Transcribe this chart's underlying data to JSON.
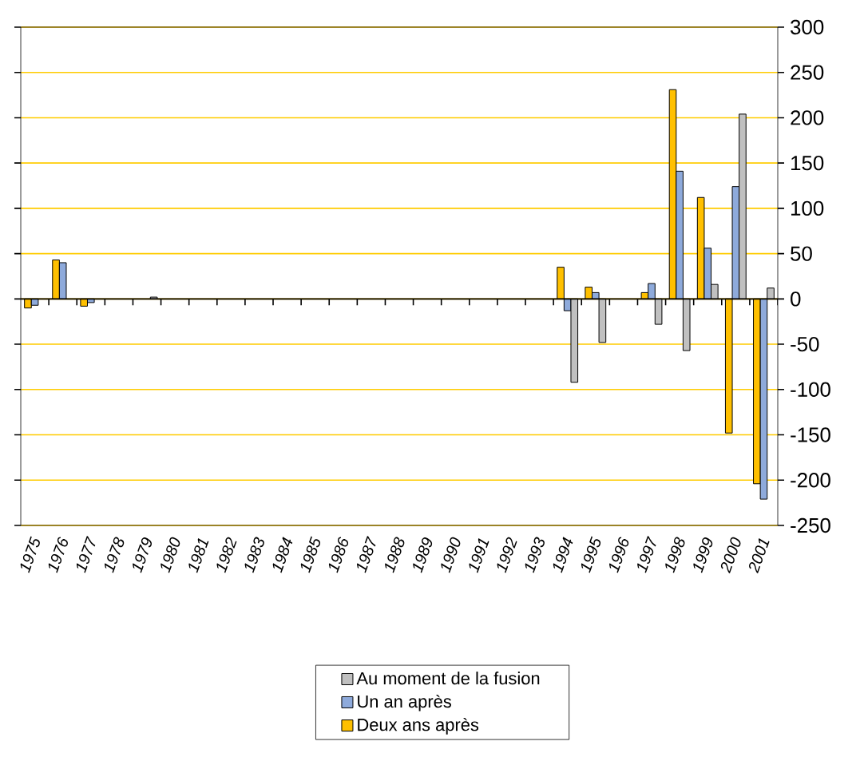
{
  "chart_data": {
    "type": "bar",
    "categories": [
      "1975",
      "1976",
      "1977",
      "1978",
      "1979",
      "1980",
      "1981",
      "1982",
      "1983",
      "1984",
      "1985",
      "1986",
      "1987",
      "1988",
      "1989",
      "1990",
      "1991",
      "1992",
      "1993",
      "1994",
      "1995",
      "1996",
      "1997",
      "1998",
      "1999",
      "2000",
      "2001"
    ],
    "series": [
      {
        "name": "Au moment de la fusion",
        "color": "#c0c0c0",
        "values": [
          null,
          null,
          null,
          null,
          2,
          null,
          null,
          null,
          null,
          null,
          null,
          null,
          null,
          null,
          null,
          null,
          null,
          null,
          null,
          -92,
          -48,
          null,
          -28,
          -57,
          16,
          204,
          12
        ]
      },
      {
        "name": "Un an après",
        "color": "#8eaadb",
        "values": [
          -7,
          40,
          -4,
          null,
          null,
          null,
          null,
          null,
          null,
          null,
          null,
          null,
          null,
          null,
          null,
          null,
          null,
          null,
          null,
          -13,
          7,
          null,
          17,
          141,
          56,
          124,
          -221
        ]
      },
      {
        "name": "Deux ans après",
        "color": "#ffc000",
        "values": [
          -10,
          43,
          -8,
          null,
          null,
          null,
          null,
          null,
          null,
          null,
          null,
          null,
          null,
          null,
          null,
          null,
          null,
          null,
          null,
          35,
          13,
          null,
          7,
          231,
          112,
          -148,
          -204
        ]
      }
    ],
    "ylim": [
      -250,
      300
    ],
    "yticks": [
      -250,
      -200,
      -150,
      -100,
      -50,
      0,
      50,
      100,
      150,
      200,
      250,
      300
    ],
    "grid": "y",
    "legend": "bottom"
  }
}
